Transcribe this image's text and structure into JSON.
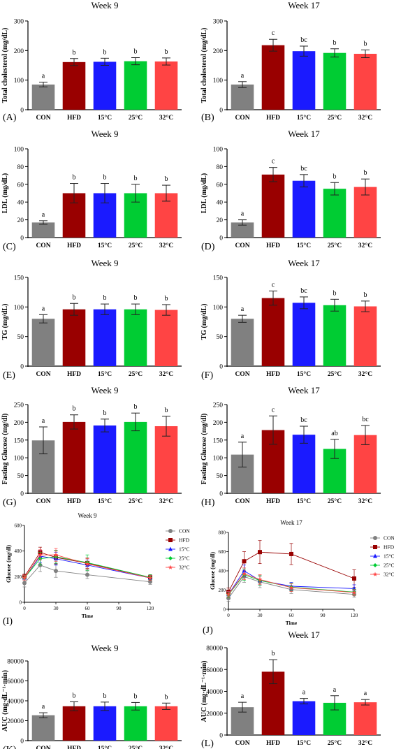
{
  "bar_colors": [
    "#808080",
    "#990000",
    "#1a1aff",
    "#00cc33",
    "#ff4444"
  ],
  "line_colors": [
    "#808080",
    "#990000",
    "#1a1aff",
    "#00cc33",
    "#ff4444"
  ],
  "line_markers": [
    "circle",
    "square",
    "triangle",
    "diamond",
    "star"
  ],
  "chart_data": [
    {
      "type": "bar",
      "panel_label": "(A)",
      "title": "Week 9",
      "ylabel": "Total cholesterol (mg/dL)",
      "categories": [
        "CON",
        "HFD",
        "15°C",
        "25°C",
        "32°C"
      ],
      "values": [
        85,
        161,
        162,
        164,
        163
      ],
      "errors": [
        8,
        12,
        12,
        12,
        12
      ],
      "letters": [
        "a",
        "b",
        "b",
        "b",
        "b"
      ],
      "ylim": [
        0,
        300
      ],
      "yticks": [
        0,
        100,
        200,
        300
      ]
    },
    {
      "type": "bar",
      "panel_label": "(B)",
      "title": "Week 17",
      "ylabel": "Total cholesterol (mg/dL)",
      "categories": [
        "CON",
        "HFD",
        "15°C",
        "25°C",
        "32°C"
      ],
      "values": [
        85,
        218,
        198,
        192,
        189
      ],
      "errors": [
        10,
        20,
        17,
        14,
        13
      ],
      "letters": [
        "a",
        "c",
        "bc",
        "b",
        "b"
      ],
      "ylim": [
        0,
        300
      ],
      "yticks": [
        0,
        100,
        200,
        300
      ]
    },
    {
      "type": "bar",
      "panel_label": "(C)",
      "title": "Week 9",
      "ylabel": "LDL (mg/dL)",
      "categories": [
        "CON",
        "HFD",
        "15°C",
        "25°C",
        "32°C"
      ],
      "values": [
        17,
        50,
        50,
        50,
        50
      ],
      "errors": [
        2,
        11,
        11,
        10,
        9
      ],
      "letters": [
        "a",
        "b",
        "b",
        "b",
        "b"
      ],
      "ylim": [
        0,
        100
      ],
      "yticks": [
        0,
        20,
        40,
        60,
        80,
        100
      ]
    },
    {
      "type": "bar",
      "panel_label": "(D)",
      "title": "Week 17",
      "ylabel": "LDL (mg/dL)",
      "categories": [
        "CON",
        "HFD",
        "15°C",
        "25°C",
        "32°C"
      ],
      "values": [
        17,
        71,
        64,
        55,
        57
      ],
      "errors": [
        3,
        8,
        7,
        7,
        9
      ],
      "letters": [
        "a",
        "c",
        "bc",
        "b",
        "b"
      ],
      "ylim": [
        0,
        100
      ],
      "yticks": [
        0,
        20,
        40,
        60,
        80,
        100
      ]
    },
    {
      "type": "bar",
      "panel_label": "(E)",
      "title": "Week 9",
      "ylabel": "TG (mg/dL)",
      "categories": [
        "CON",
        "HFD",
        "15°C",
        "25°C",
        "32°C"
      ],
      "values": [
        80,
        96,
        96,
        96,
        95
      ],
      "errors": [
        7,
        10,
        9,
        9,
        9
      ],
      "letters": [
        "a",
        "b",
        "b",
        "b",
        "b"
      ],
      "ylim": [
        0,
        150
      ],
      "yticks": [
        0,
        50,
        100,
        150
      ]
    },
    {
      "type": "bar",
      "panel_label": "(F)",
      "title": "Week 17",
      "ylabel": "TG (mg/dL)",
      "categories": [
        "CON",
        "HFD",
        "15°C",
        "25°C",
        "32°C"
      ],
      "values": [
        80,
        115,
        107,
        103,
        101
      ],
      "errors": [
        6,
        12,
        10,
        10,
        9
      ],
      "letters": [
        "a",
        "c",
        "bc",
        "b",
        "b"
      ],
      "ylim": [
        0,
        150
      ],
      "yticks": [
        0,
        50,
        100,
        150
      ]
    },
    {
      "type": "bar",
      "panel_label": "(G)",
      "title": "Week 9",
      "ylabel": "Fasting Glucose (mg/dl)",
      "categories": [
        "CON",
        "HFD",
        "15°C",
        "25°C",
        "32°C"
      ],
      "values": [
        149,
        201,
        191,
        201,
        189
      ],
      "errors": [
        38,
        20,
        18,
        25,
        28
      ],
      "letters": [
        "a",
        "b",
        "b",
        "b",
        "b"
      ],
      "ylim": [
        0,
        250
      ],
      "yticks": [
        0,
        50,
        100,
        150,
        200,
        250
      ]
    },
    {
      "type": "bar",
      "panel_label": "(H)",
      "title": "Week 17",
      "ylabel": "Fasting Glucose (mg/dl)",
      "categories": [
        "CON",
        "HFD",
        "15°C",
        "25°C",
        "32°C"
      ],
      "values": [
        109,
        178,
        165,
        125,
        164
      ],
      "errors": [
        35,
        40,
        24,
        27,
        27
      ],
      "letters": [
        "a",
        "c",
        "bc",
        "ab",
        "bc"
      ],
      "ylim": [
        0,
        250
      ],
      "yticks": [
        0,
        50,
        100,
        150,
        200,
        250
      ]
    },
    {
      "type": "line",
      "panel_label": "(I)",
      "title": "Week 9",
      "ylabel": "Glucose (mg/dl)",
      "xlabel": "Time",
      "x": [
        0,
        15,
        30,
        60,
        120
      ],
      "xlim": [
        0,
        120
      ],
      "xticks": [
        0,
        30,
        60,
        90,
        120
      ],
      "ylim": [
        0,
        600
      ],
      "yticks": [
        0,
        200,
        400,
        600
      ],
      "legend": "right",
      "series": [
        {
          "name": "CON",
          "values": [
            150,
            290,
            245,
            215,
            160
          ],
          "errors": [
            30,
            50,
            50,
            30,
            20
          ]
        },
        {
          "name": "HFD",
          "values": [
            200,
            390,
            350,
            305,
            195
          ],
          "errors": [
            20,
            40,
            50,
            40,
            20
          ]
        },
        {
          "name": "15°C",
          "values": [
            190,
            360,
            340,
            290,
            190
          ],
          "errors": [
            20,
            50,
            50,
            40,
            20
          ]
        },
        {
          "name": "25°C",
          "values": [
            190,
            340,
            355,
            310,
            195
          ],
          "errors": [
            20,
            50,
            50,
            60,
            20
          ]
        },
        {
          "name": "32°C",
          "values": [
            190,
            370,
            370,
            300,
            190
          ],
          "errors": [
            20,
            40,
            50,
            40,
            20
          ]
        }
      ]
    },
    {
      "type": "line",
      "panel_label": "(J)",
      "title": "Week 17",
      "ylabel": "Glucose (mg/dl)",
      "xlabel": "Time",
      "x": [
        0,
        15,
        30,
        60,
        120
      ],
      "xlim": [
        0,
        120
      ],
      "xticks": [
        0,
        30,
        60,
        90,
        120
      ],
      "ylim": [
        0,
        800
      ],
      "yticks": [
        0,
        200,
        400,
        600,
        800
      ],
      "legend": "right",
      "series": [
        {
          "name": "CON",
          "values": [
            115,
            340,
            285,
            205,
            155
          ],
          "errors": [
            30,
            60,
            60,
            40,
            30
          ]
        },
        {
          "name": "HFD",
          "values": [
            180,
            500,
            595,
            575,
            320
          ],
          "errors": [
            40,
            100,
            120,
            110,
            90
          ]
        },
        {
          "name": "15°C",
          "values": [
            155,
            400,
            300,
            240,
            215
          ],
          "errors": [
            30,
            60,
            50,
            40,
            40
          ]
        },
        {
          "name": "25°C",
          "values": [
            150,
            360,
            300,
            230,
            180
          ],
          "errors": [
            30,
            60,
            50,
            40,
            30
          ]
        },
        {
          "name": "32°C",
          "values": [
            155,
            370,
            310,
            225,
            175
          ],
          "errors": [
            30,
            60,
            50,
            40,
            30
          ]
        }
      ]
    },
    {
      "type": "bar",
      "panel_label": "(K)",
      "title": "Week 9",
      "ylabel": "AUC (mg·dL⁻¹·min)",
      "categories": [
        "CON",
        "HFD",
        "15°C",
        "25°C",
        "32°C"
      ],
      "values": [
        25500,
        34500,
        34500,
        34500,
        34500
      ],
      "errors": [
        2500,
        4500,
        4200,
        3800,
        3200
      ],
      "letters": [
        "a",
        "b",
        "b",
        "b",
        "b"
      ],
      "ylim": [
        0,
        80000
      ],
      "yticks": [
        0,
        20000,
        40000,
        60000,
        80000
      ]
    },
    {
      "type": "bar",
      "panel_label": "(L)",
      "title": "Week 17",
      "ylabel": "AUC (mg·dL⁻¹·min)",
      "categories": [
        "CON",
        "HFD",
        "15°C",
        "25°C",
        "32°C"
      ],
      "values": [
        25500,
        58000,
        31000,
        29500,
        30000
      ],
      "errors": [
        4500,
        11000,
        2500,
        6500,
        2500
      ],
      "letters": [
        "a",
        "b",
        "a",
        "a",
        "a"
      ],
      "ylim": [
        0,
        80000
      ],
      "yticks": [
        0,
        20000,
        40000,
        60000,
        80000
      ]
    }
  ]
}
